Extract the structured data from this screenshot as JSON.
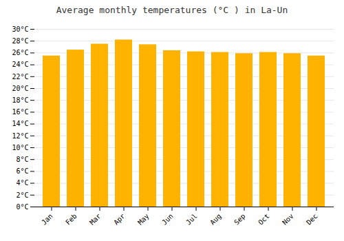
{
  "chart_data": {
    "type": "bar",
    "title": "Average monthly temperatures (°C ) in La-Un",
    "categories": [
      "Jan",
      "Feb",
      "Mar",
      "Apr",
      "May",
      "Jun",
      "Jul",
      "Aug",
      "Sep",
      "Oct",
      "Nov",
      "Dec"
    ],
    "values": [
      25.5,
      26.5,
      27.5,
      28.2,
      27.4,
      26.4,
      26.2,
      26.1,
      25.9,
      26.1,
      25.9,
      25.5
    ],
    "color": "#FFB300",
    "ylim": [
      0,
      30
    ],
    "yticks": [
      {
        "value": 0,
        "label": "0°C"
      },
      {
        "value": 2,
        "label": "2°C"
      },
      {
        "value": 4,
        "label": "4°C"
      },
      {
        "value": 6,
        "label": "6°C"
      },
      {
        "value": 8,
        "label": "8°C"
      },
      {
        "value": 10,
        "label": "10°C"
      },
      {
        "value": 12,
        "label": "12°C"
      },
      {
        "value": 14,
        "label": "14°C"
      },
      {
        "value": 16,
        "label": "16°C"
      },
      {
        "value": 18,
        "label": "18°C"
      },
      {
        "value": 20,
        "label": "20°C"
      },
      {
        "value": 22,
        "label": "22°C"
      },
      {
        "value": 24,
        "label": "24°C"
      },
      {
        "value": 26,
        "label": "26°C"
      },
      {
        "value": 28,
        "label": "28°C"
      },
      {
        "value": 30,
        "label": "30°C"
      }
    ],
    "grid": true
  }
}
